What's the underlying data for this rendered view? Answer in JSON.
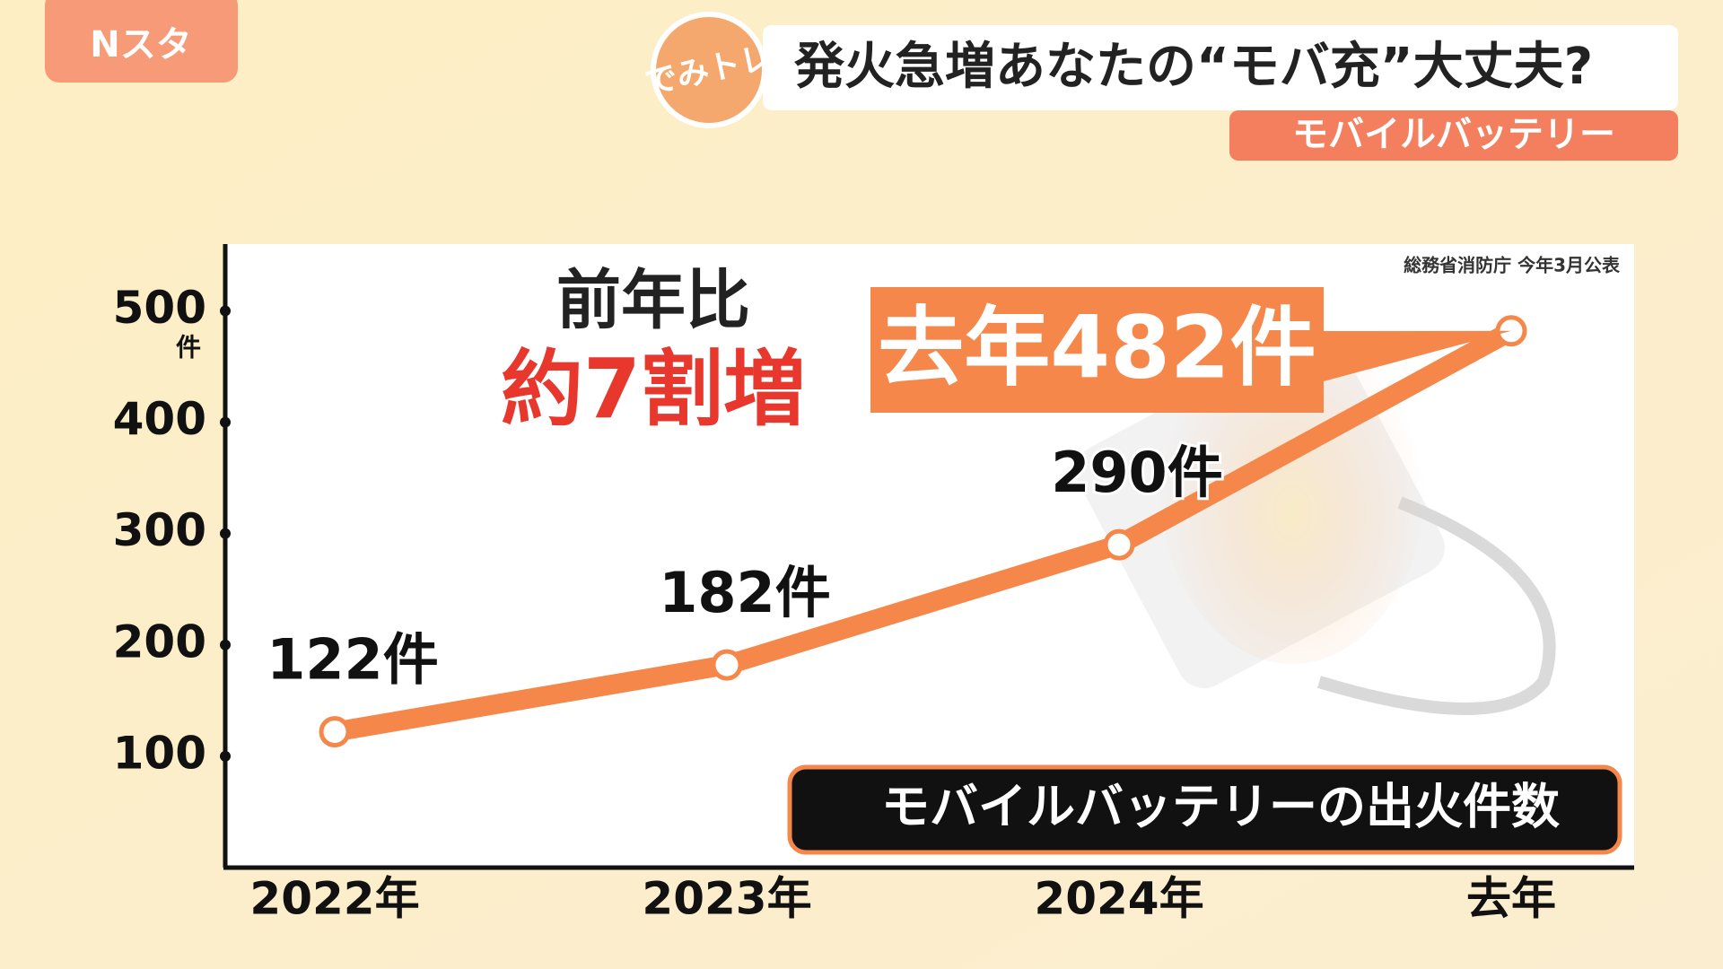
{
  "header": {
    "logo": "Nスタ",
    "badge": "でみトレ",
    "title": "発火急増あなたの“モバ充”大丈夫?",
    "subtitle": "モバイルバッテリー"
  },
  "chart_data": {
    "type": "line",
    "title": "モバイルバッテリーの出火件数",
    "source": "総務省消防庁 今年3月公表",
    "annotation": [
      "前年比",
      "約7割増"
    ],
    "categories": [
      "2022年",
      "2023年",
      "2024年",
      "去年"
    ],
    "values": [
      122,
      182,
      290,
      482
    ],
    "value_labels": [
      "122件",
      "182件",
      "290件",
      "去年482件"
    ],
    "color": "#f5874a",
    "ylim": [
      0,
      560
    ],
    "yticks": [
      100,
      200,
      300,
      400,
      500
    ],
    "y_unit": "件"
  }
}
